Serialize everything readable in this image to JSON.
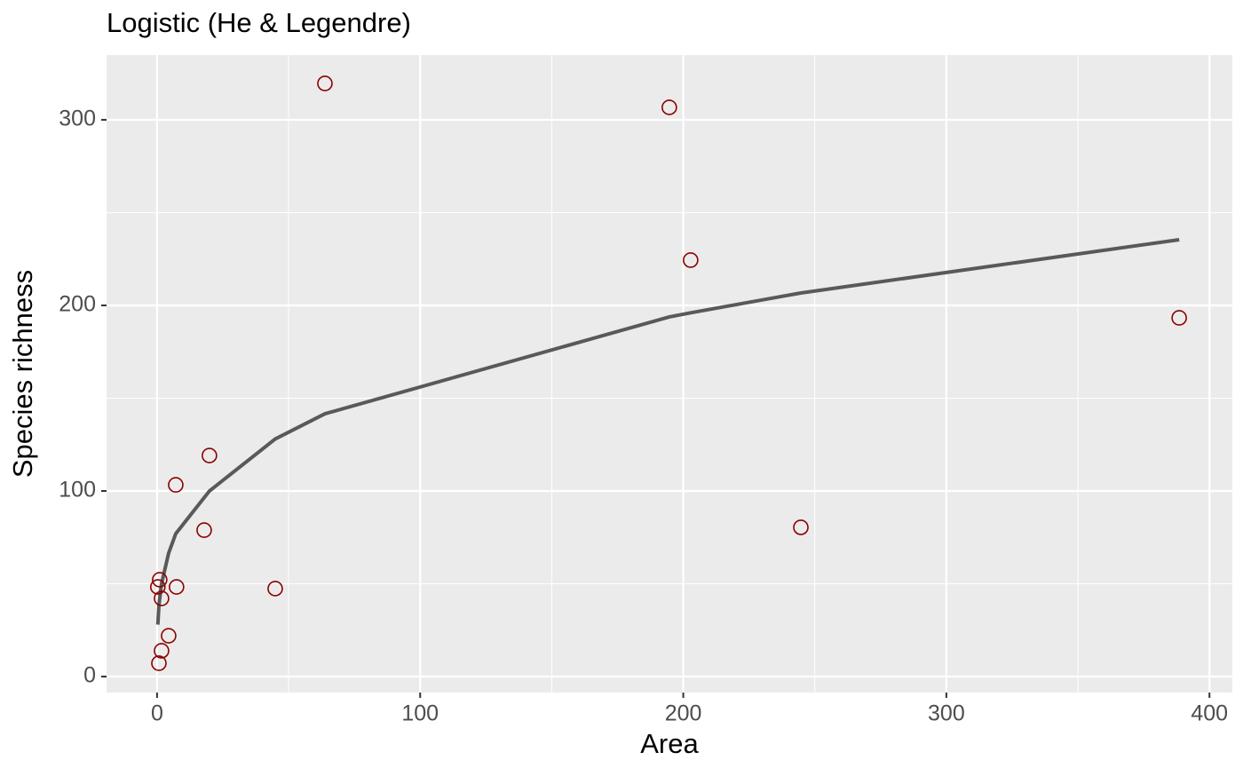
{
  "chart_data": {
    "type": "scatter",
    "title": "Logistic (He & Legendre)",
    "x_label": "Area",
    "y_label": "Species richness",
    "xlim": [
      -19.2,
      408.7
    ],
    "ylim": [
      -8.6,
      334.9
    ],
    "xticks": [
      0,
      100,
      200,
      300,
      400
    ],
    "yticks": [
      0,
      100,
      200,
      300
    ],
    "x_minor_grid": [
      50,
      150,
      250,
      350
    ],
    "y_minor_grid": [
      50,
      150,
      250
    ],
    "grid": true,
    "points": {
      "color": "#8b0000",
      "x": [
        63.8,
        194.7,
        202.8,
        388.5,
        244.7,
        19.9,
        7.1,
        17.9,
        44.9,
        7.4,
        1.0,
        0.3,
        1.7,
        4.4,
        1.7,
        0.7
      ],
      "y": [
        319.6,
        306.7,
        224.4,
        193.3,
        80.4,
        119.1,
        103.3,
        78.9,
        47.4,
        48.3,
        52.2,
        48.3,
        42.1,
        22.0,
        13.9,
        7.2
      ]
    },
    "fit": {
      "color": "#595959",
      "x": [
        0.3,
        0.7,
        1.0,
        1.7,
        4.4,
        7.1,
        19.9,
        44.9,
        63.8,
        194.7,
        202.8,
        244.7,
        388.5
      ],
      "y": [
        28,
        38,
        42,
        50,
        66.5,
        77,
        100,
        128,
        141.6,
        193.8,
        196,
        206.7,
        235.4
      ]
    }
  }
}
